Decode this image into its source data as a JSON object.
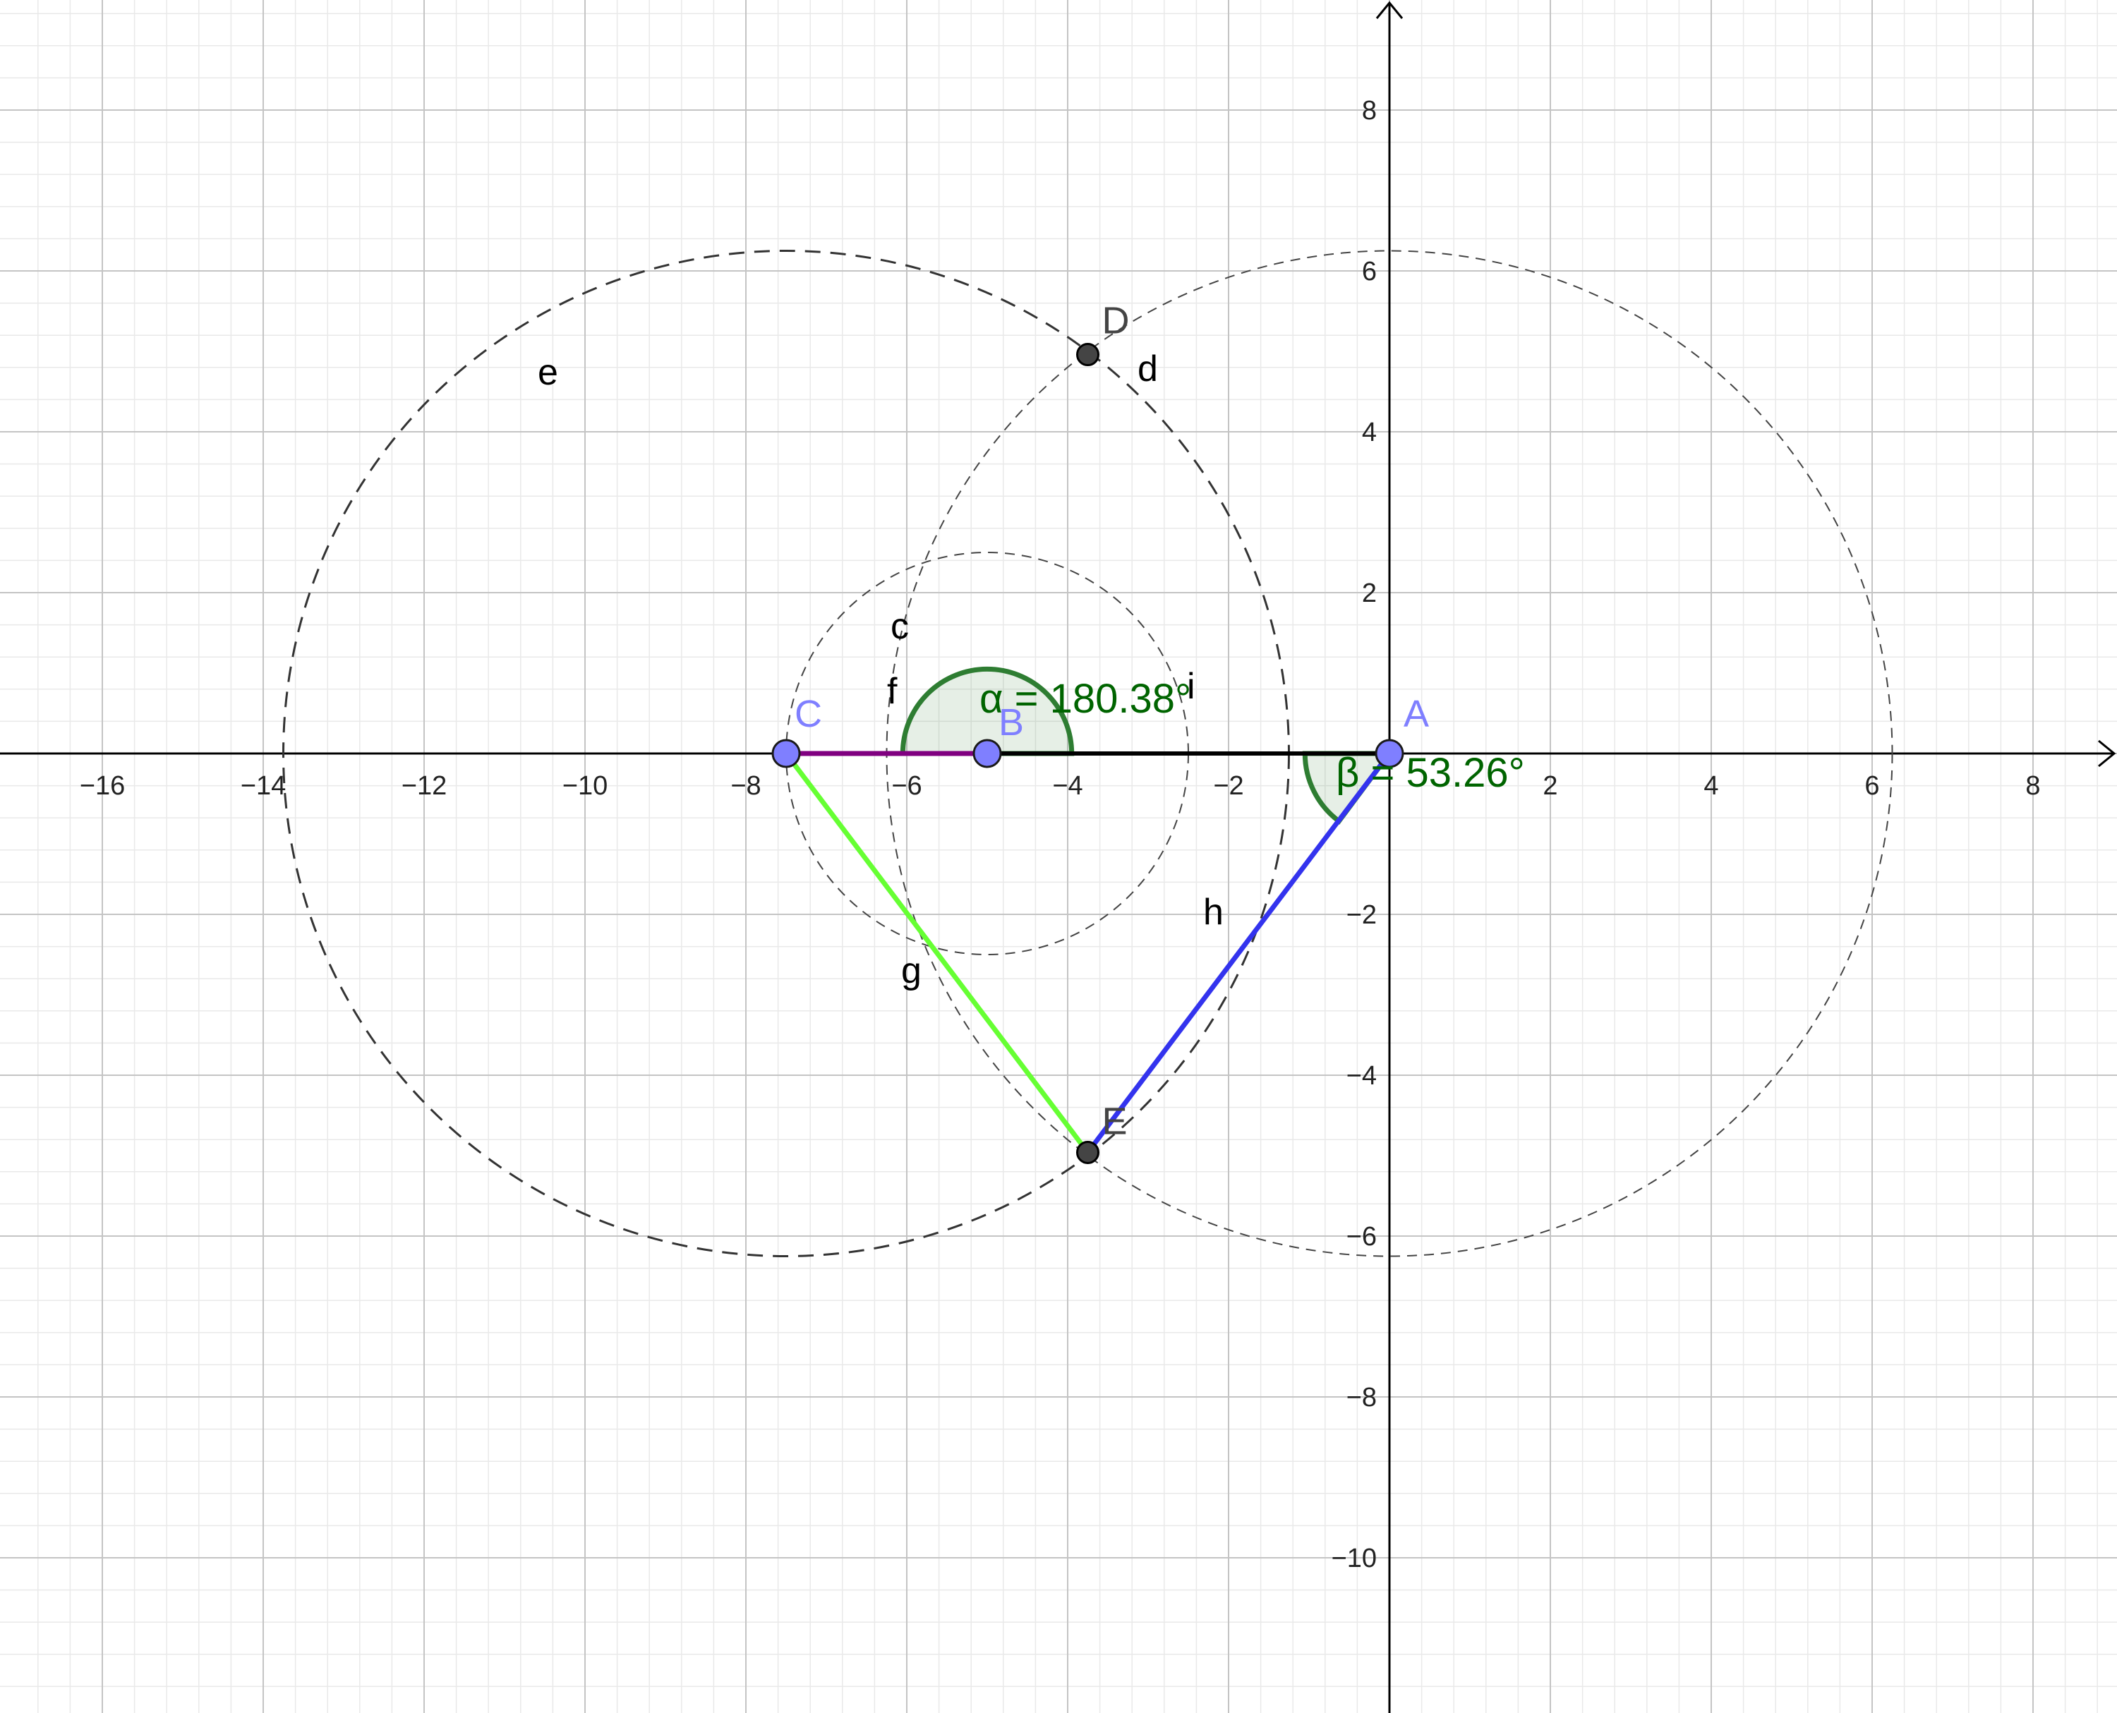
{
  "axes": {
    "x_ticks": [
      "−16",
      "−14",
      "−12",
      "−10",
      "−8",
      "−6",
      "−4",
      "−2",
      "2",
      "4",
      "6",
      "8"
    ],
    "y_ticks": [
      "8",
      "6",
      "4",
      "2",
      "−2",
      "−4",
      "−6",
      "−8",
      "−10"
    ],
    "x_range": [
      -17.2,
      9.3
    ],
    "y_range": [
      -11.8,
      9.4
    ],
    "grid": true,
    "major_step": 2,
    "minor_step": 0.4
  },
  "colors": {
    "point": "#7f7fff",
    "point_dark": "#444444",
    "segment_f": "#800080",
    "segment_g": "#66ff33",
    "segment_h": "#3333ee",
    "angle": "#2e7d32",
    "angle_text": "#006400"
  },
  "points": [
    {
      "name": "A",
      "x": 0,
      "y": 0,
      "style": "free"
    },
    {
      "name": "B",
      "x": -5,
      "y": 0,
      "style": "free"
    },
    {
      "name": "C",
      "x": -7.5,
      "y": 0,
      "style": "free"
    },
    {
      "name": "D",
      "x": -3.75,
      "y": 4.96,
      "style": "dependent"
    },
    {
      "name": "E",
      "x": -3.75,
      "y": -4.96,
      "style": "dependent"
    }
  ],
  "circles": [
    {
      "name": "c",
      "cx": -5,
      "cy": 0,
      "r": 2.5
    },
    {
      "name": "d",
      "cx": 0,
      "cy": 0,
      "r": 6.25
    },
    {
      "name": "e",
      "cx": -7.5,
      "cy": 0,
      "r": 6.25
    }
  ],
  "segments": [
    {
      "name": "f",
      "from": "C",
      "to": "B"
    },
    {
      "name": "i",
      "from": "B",
      "to": "A"
    },
    {
      "name": "g",
      "from": "C",
      "to": "E"
    },
    {
      "name": "h",
      "from": "A",
      "to": "E"
    }
  ],
  "labels": {
    "A": "A",
    "B": "B",
    "C": "C",
    "D": "D",
    "E": "E",
    "c": "c",
    "d": "d",
    "e": "e",
    "f": "f",
    "g": "g",
    "h": "h",
    "i": "i"
  },
  "angles": [
    {
      "name": "α",
      "text": "α = 180.38°",
      "vertex": "B",
      "radius": 1.05
    },
    {
      "name": "β",
      "text": "β = 53.26°",
      "vertex": "A",
      "radius": 1.05,
      "from_deg": 180,
      "to_deg": 233.26
    }
  ]
}
